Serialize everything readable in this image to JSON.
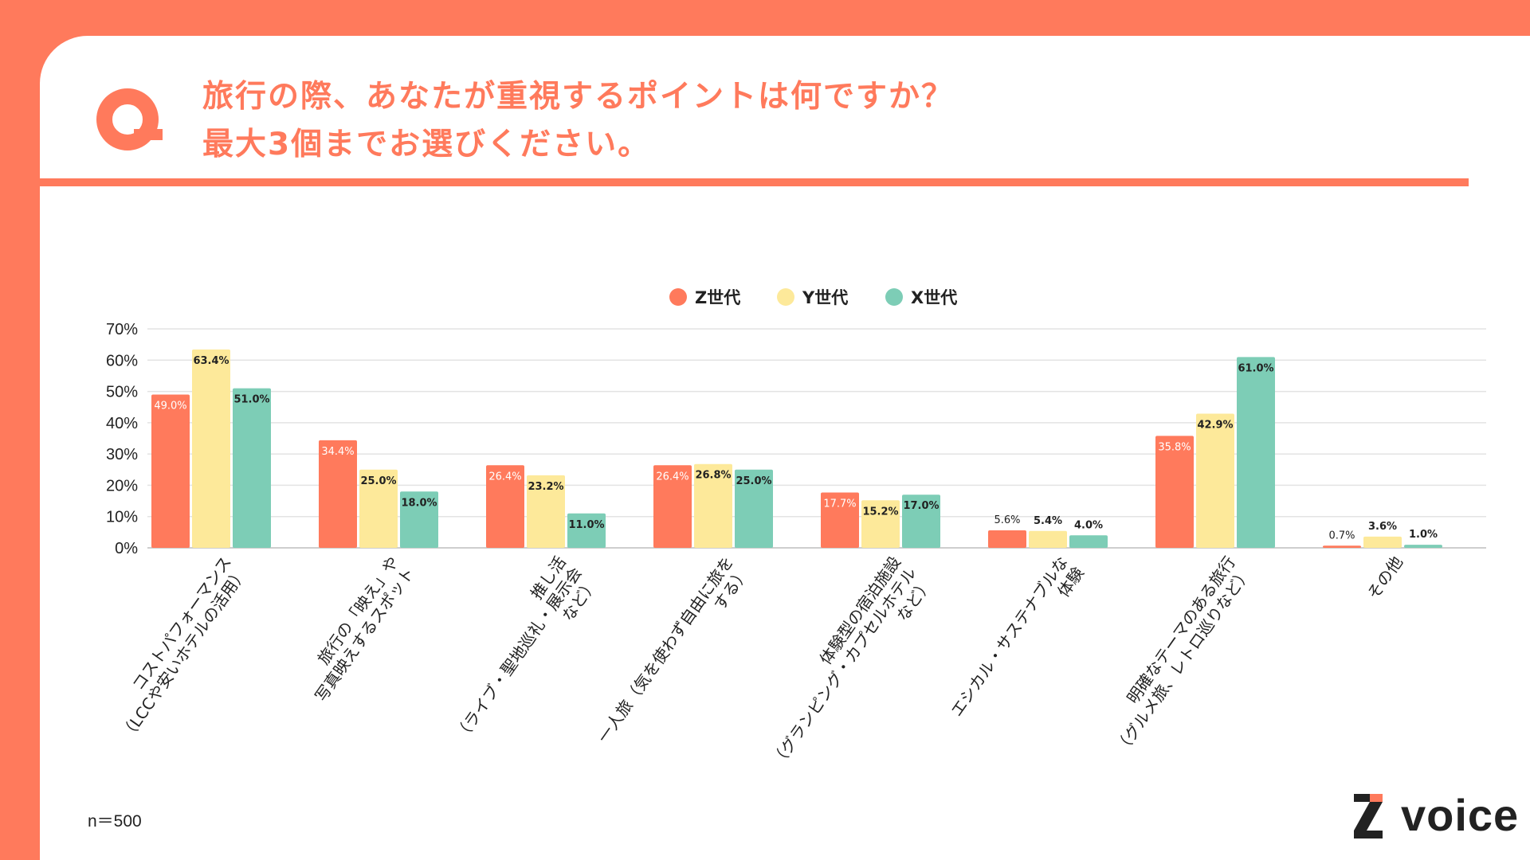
{
  "header": {
    "question_line1": "旅行の際、あなたが重視するポイントは何ですか？",
    "question_line2": "最大3個までお選びください。",
    "accent_color": "#FF7A5C",
    "logo_icon": "q-icon"
  },
  "footer": {
    "sample_size": "n＝500",
    "brand": "voice",
    "brand_icon": "z-icon"
  },
  "chart_data": {
    "type": "bar",
    "categories": [
      [
        "コストパフォーマンス",
        "（LCCや安いホテルの活用）"
      ],
      [
        "旅行の「映え」や",
        "写真映えするスポット"
      ],
      [
        "推し活",
        "（ライブ・聖地巡礼・展示会",
        "など）"
      ],
      [
        "一人旅（気を使わず自由に旅を",
        "する）"
      ],
      [
        "体験型の宿泊施設",
        "（グランピング・カプセルホテル",
        "など）"
      ],
      [
        "エシカル・サステナブルな",
        "体験"
      ],
      [
        "明確なテーマのある旅行",
        "（グルメ旅、レトロ巡りなど）"
      ],
      [
        "その他"
      ]
    ],
    "series": [
      {
        "name": "Z世代",
        "color": "#FF7A5C",
        "values": [
          49.0,
          34.4,
          26.4,
          26.4,
          17.7,
          5.6,
          35.8,
          0.7
        ]
      },
      {
        "name": "Y世代",
        "color": "#FDE99A",
        "values": [
          63.4,
          25.0,
          23.2,
          26.8,
          15.2,
          5.4,
          42.9,
          3.6
        ]
      },
      {
        "name": "X世代",
        "color": "#7DCDB6",
        "values": [
          51.0,
          18.0,
          11.0,
          25.0,
          17.0,
          4.0,
          61.0,
          1.0
        ]
      }
    ],
    "value_labels": [
      [
        "49.0%",
        "34.4%",
        "26.4%",
        "26.4%",
        "17.7%",
        "5.6%",
        "35.8%",
        "0.7%"
      ],
      [
        "63.4%",
        "25.0%",
        "23.2%",
        "26.8%",
        "15.2%",
        "5.4%",
        "42.9%",
        "3.6%"
      ],
      [
        "51.0%",
        "18.0%",
        "11.0%",
        "25.0%",
        "17.0%",
        "4.0%",
        "61.0%",
        "1.0%"
      ]
    ],
    "yticks": [
      "0%",
      "10%",
      "20%",
      "30%",
      "40%",
      "50%",
      "60%",
      "70%"
    ],
    "ylim": [
      0,
      70
    ],
    "grid": true,
    "legend_position": "top-center"
  }
}
